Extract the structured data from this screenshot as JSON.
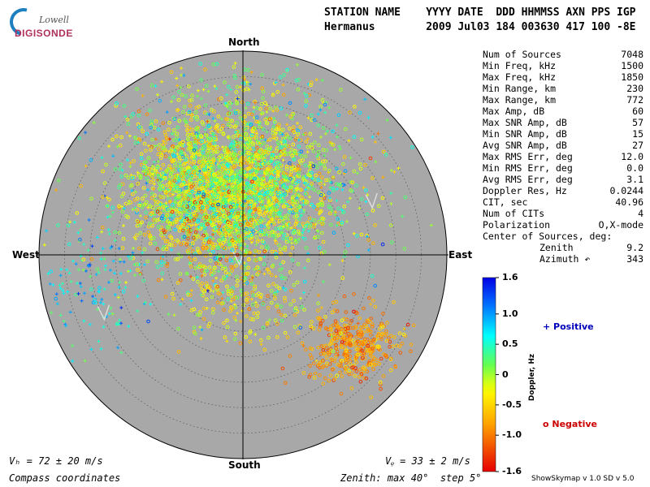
{
  "logo": {
    "line1": "Lowell",
    "line2": "DIGISONDE"
  },
  "header": {
    "labels": "STATION NAME    YYYY DATE  DDD HHMMSS AXN PPS IGP",
    "values": "Hermanus        2009 Jul03 184 003630 417 100 -8E"
  },
  "compass": {
    "north": "North",
    "south": "South",
    "east": "East",
    "west": "West"
  },
  "stats": [
    {
      "label": "Num of Sources",
      "value": "7048"
    },
    {
      "label": "Min Freq, kHz",
      "value": "1500"
    },
    {
      "label": "Max Freq, kHz",
      "value": "1850"
    },
    {
      "label": "Min Range, km",
      "value": "230"
    },
    {
      "label": "Max Range, km",
      "value": "772"
    },
    {
      "label": "Max Amp, dB",
      "value": "60"
    },
    {
      "label": "Max SNR Amp, dB",
      "value": "57"
    },
    {
      "label": "Min SNR Amp, dB",
      "value": "15"
    },
    {
      "label": "Avg SNR Amp, dB",
      "value": "27"
    },
    {
      "label": "Max RMS Err, deg",
      "value": "12.0"
    },
    {
      "label": "Min RMS Err, deg",
      "value": "0.0"
    },
    {
      "label": "Avg RMS Err, deg",
      "value": "3.1"
    },
    {
      "label": "Doppler Res, Hz",
      "value": "0.0244"
    },
    {
      "label": "CIT, sec",
      "value": "40.96"
    },
    {
      "label": "Num of CITs",
      "value": "4"
    },
    {
      "label": "Polarization",
      "value": "O,X-mode"
    }
  ],
  "center": {
    "title": "Center of Sources, deg:",
    "zenith_label": "Zenith",
    "zenith_value": "9.2",
    "azimuth_label": "Azimuth ↶",
    "azimuth_value": "343"
  },
  "colorbar": {
    "label": "Doppler, Hz",
    "ticks": [
      "1.6",
      "1.0",
      "0.5",
      "0",
      "-0.5",
      "-1.0",
      "-1.6"
    ],
    "range": [
      -1.6,
      1.6
    ],
    "positive_label": "+ Positive",
    "negative_label": "o Negative",
    "positive_color": "#0000bb",
    "negative_color": "#cc0000"
  },
  "footer": {
    "vh": "Vₕ = 72 ± 20 m/s",
    "vz": "Vᵩ = 33 ± 2 m/s",
    "coords": "Compass coordinates",
    "zenith": "Zenith: max 40°  step 5°",
    "version": "ShowSkymap v 1.0   SD v 5.0"
  },
  "chart_data": {
    "type": "scatter",
    "projection": "polar zenith-azimuth",
    "zenith_max_deg": 40,
    "zenith_step_deg": 5,
    "background": "#a8a8a8",
    "clusters": [
      {
        "azimuth_deg": 350,
        "zenith_deg": 15,
        "spread_deg": 9,
        "doppler": -0.25,
        "doppler_spread": 0.35,
        "count": 1400,
        "positive_fraction": 0.15
      },
      {
        "azimuth_deg": 330,
        "zenith_deg": 14,
        "spread_deg": 8,
        "doppler": 0.05,
        "doppler_spread": 0.4,
        "count": 700,
        "positive_fraction": 0.25
      },
      {
        "azimuth_deg": 15,
        "zenith_deg": 11,
        "spread_deg": 9,
        "doppler": 0.1,
        "doppler_spread": 0.35,
        "count": 650,
        "positive_fraction": 0.3
      },
      {
        "azimuth_deg": 310,
        "zenith_deg": 10,
        "spread_deg": 6,
        "doppler": -0.8,
        "doppler_spread": 0.35,
        "count": 160,
        "positive_fraction": 0.1
      },
      {
        "azimuth_deg": 130,
        "zenith_deg": 28,
        "spread_deg": 4.5,
        "doppler": -0.85,
        "doppler_spread": 0.25,
        "count": 420,
        "positive_fraction": 0.05
      },
      {
        "azimuth_deg": 258,
        "zenith_deg": 31,
        "spread_deg": 8,
        "doppler": 0.6,
        "doppler_spread": 0.3,
        "count": 160,
        "positive_fraction": 0.85
      },
      {
        "azimuth_deg": 180,
        "zenith_deg": 8,
        "spread_deg": 6,
        "doppler": -0.35,
        "doppler_spread": 0.3,
        "count": 220,
        "positive_fraction": 0.2
      },
      {
        "azimuth_deg": 0,
        "zenith_deg": 22,
        "spread_deg": 18,
        "doppler": 0.2,
        "doppler_spread": 0.5,
        "count": 600,
        "positive_fraction": 0.45
      }
    ],
    "velocity_vectors": [
      {
        "azimuth_deg": 70,
        "zenith_deg": 27
      },
      {
        "azimuth_deg": 245,
        "zenith_deg": 30
      },
      {
        "azimuth_deg": 200,
        "zenith_deg": 2
      }
    ]
  }
}
